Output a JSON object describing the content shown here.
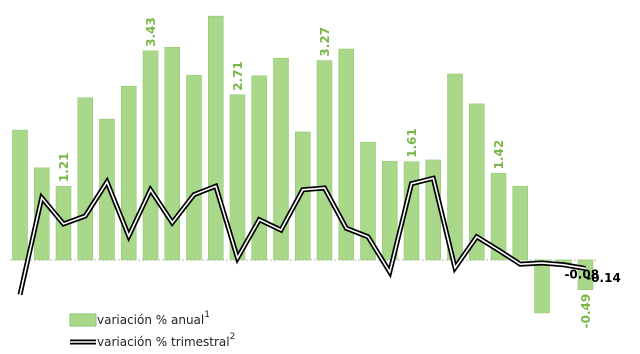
{
  "chart_data": {
    "type": "bar_line",
    "series": [
      {
        "name": "variación % anual",
        "name_superscript": "1",
        "type": "bar",
        "color": "#a9d88a",
        "label_color": "#7ab648",
        "values": [
          2.13,
          1.51,
          1.21,
          2.66,
          2.31,
          2.85,
          3.43,
          3.49,
          3.03,
          4.0,
          2.71,
          3.02,
          3.31,
          2.1,
          3.27,
          3.46,
          1.93,
          1.62,
          1.61,
          1.64,
          3.05,
          2.56,
          1.42,
          1.21,
          -0.87,
          -0.1,
          -0.49
        ],
        "value_labels": [
          null,
          null,
          "1.21",
          null,
          null,
          null,
          "3.43",
          null,
          null,
          null,
          "2.71",
          null,
          null,
          null,
          "3.27",
          null,
          null,
          null,
          "1.61",
          null,
          null,
          null,
          "1.42",
          null,
          null,
          null,
          "-0.49"
        ]
      },
      {
        "name": "variación % trimestral",
        "name_superscript": "2",
        "type": "line",
        "color": "#000000",
        "label_color": "#000000",
        "values": [
          -0.57,
          1.02,
          0.59,
          0.72,
          1.28,
          0.39,
          1.15,
          0.61,
          1.07,
          1.21,
          0.03,
          0.66,
          0.49,
          1.15,
          1.18,
          0.52,
          0.38,
          -0.2,
          1.25,
          1.34,
          -0.13,
          0.38,
          0.16,
          -0.07,
          -0.05,
          -0.08,
          -0.14
        ],
        "value_labels": [
          null,
          null,
          null,
          null,
          null,
          null,
          null,
          null,
          null,
          null,
          null,
          null,
          null,
          null,
          null,
          null,
          null,
          null,
          null,
          null,
          null,
          null,
          null,
          null,
          null,
          "-0.08",
          "-0.14"
        ]
      }
    ],
    "ylim": [
      -1.15,
      4.1
    ]
  }
}
